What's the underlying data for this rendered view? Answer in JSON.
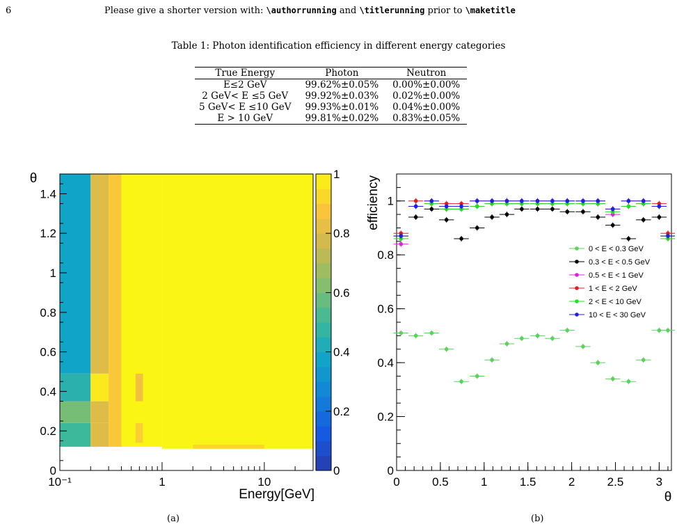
{
  "header": {
    "page_number": "6",
    "running_text": "Please give a shorter version with:",
    "cmd_author": "\\authorrunning",
    "and_word": "and",
    "cmd_title": "\\titlerunning",
    "prior_text": "prior to",
    "cmd_maketitle": "\\maketitle"
  },
  "table": {
    "caption": "Table 1: Photon identification efficiency in different energy categories",
    "headers": [
      "True Energy",
      "Photon",
      "Neutron"
    ],
    "rows": [
      [
        "E≤2 GeV",
        "99.62%±0.05%",
        "0.00%±0.00%"
      ],
      [
        "2 GeV< E ≤5 GeV",
        "99.92%±0.03%",
        "0.02%±0.00%"
      ],
      [
        "5 GeV< E ≤10 GeV",
        "99.93%±0.01%",
        "0.04%±0.00%"
      ],
      [
        "E > 10 GeV",
        "99.81%±0.02%",
        "0.83%±0.05%"
      ]
    ]
  },
  "captions": {
    "a": "(a)",
    "b": "(b)"
  },
  "chart_data": [
    {
      "type": "heatmap",
      "xlabel": "Energy[GeV]",
      "ylabel": "θ",
      "x_scale": "log",
      "xlim": [
        0.1,
        30
      ],
      "ylim": [
        0,
        1.5
      ],
      "x_tick_labels": [
        "10⁻¹",
        "1",
        "10"
      ],
      "y_tick_labels": [
        "0",
        "0.2",
        "0.4",
        "0.6",
        "0.8",
        "1",
        "1.2",
        "1.4"
      ],
      "colorbar_range": [
        0,
        1
      ],
      "colorbar_tick_labels": [
        "0",
        "0.2",
        "0.4",
        "0.6",
        "0.8",
        "1"
      ],
      "cells": [
        {
          "x": [
            0.1,
            0.2
          ],
          "y": [
            0.1,
            0.12
          ],
          "value": 0.0
        },
        {
          "x": [
            0.1,
            0.2
          ],
          "y": [
            0.12,
            0.24
          ],
          "value": 0.5
        },
        {
          "x": [
            0.1,
            0.2
          ],
          "y": [
            0.24,
            0.35
          ],
          "value": 0.6
        },
        {
          "x": [
            0.1,
            0.2
          ],
          "y": [
            0.35,
            0.49
          ],
          "value": 0.45
        },
        {
          "x": [
            0.1,
            0.2
          ],
          "y": [
            0.49,
            1.5
          ],
          "value": 0.38
        },
        {
          "x": [
            0.2,
            0.3
          ],
          "y": [
            0.12,
            0.24
          ],
          "value": 0.8
        },
        {
          "x": [
            0.2,
            0.3
          ],
          "y": [
            0.24,
            0.35
          ],
          "value": 0.8
        },
        {
          "x": [
            0.2,
            0.3
          ],
          "y": [
            0.35,
            0.49
          ],
          "value": 0.97
        },
        {
          "x": [
            0.2,
            0.3
          ],
          "y": [
            0.49,
            1.5
          ],
          "value": 0.8
        },
        {
          "x": [
            0.3,
            0.4
          ],
          "y": [
            0.12,
            1.5
          ],
          "value": 0.88
        },
        {
          "x": [
            0.4,
            1.0
          ],
          "y": [
            0.12,
            1.5
          ],
          "value": 1.0
        },
        {
          "x": [
            0.55,
            0.65
          ],
          "y": [
            0.14,
            0.24
          ],
          "value": 0.9
        },
        {
          "x": [
            0.55,
            0.65
          ],
          "y": [
            0.35,
            0.49
          ],
          "value": 0.85
        },
        {
          "x": [
            1.0,
            30
          ],
          "y": [
            0.11,
            1.5
          ],
          "value": 1.0
        },
        {
          "x": [
            2.0,
            10.0
          ],
          "y": [
            0.11,
            0.13
          ],
          "value": 0.92
        }
      ]
    },
    {
      "type": "scatter",
      "xlabel": "θ",
      "ylabel": "efficiency",
      "xlim": [
        0,
        3.14
      ],
      "ylim": [
        0,
        1.1
      ],
      "x_tick_labels": [
        "0",
        "0.5",
        "1",
        "1.5",
        "2",
        "2.5",
        "3"
      ],
      "y_tick_labels": [
        "0",
        "0.2",
        "0.4",
        "0.6",
        "0.8",
        "1"
      ],
      "x": [
        0.05,
        0.22,
        0.4,
        0.57,
        0.74,
        0.92,
        1.09,
        1.26,
        1.43,
        1.61,
        1.78,
        1.95,
        2.13,
        2.3,
        2.47,
        2.65,
        2.82,
        3.0,
        3.1
      ],
      "legend_position": "right-middle",
      "series": [
        {
          "name": "0 < E < 0.3 GeV",
          "color": "#5fcf5f",
          "values": [
            0.51,
            0.5,
            0.51,
            0.45,
            0.33,
            0.35,
            0.41,
            0.47,
            0.49,
            0.5,
            0.49,
            0.52,
            0.46,
            0.4,
            0.34,
            0.33,
            0.41,
            0.52,
            0.52
          ]
        },
        {
          "name": "0.3 < E < 0.5 GeV",
          "color": "#000000",
          "values": [
            0.87,
            0.94,
            0.97,
            0.93,
            0.86,
            0.9,
            0.94,
            0.95,
            0.97,
            0.97,
            0.97,
            0.96,
            0.96,
            0.94,
            0.91,
            0.86,
            0.93,
            0.94,
            0.87
          ]
        },
        {
          "name": "0.5 < E < 1 GeV",
          "color": "#e020e0",
          "values": [
            0.84,
            0.98,
            0.99,
            0.97,
            0.97,
            0.98,
            0.99,
            0.99,
            0.99,
            0.99,
            0.99,
            0.99,
            0.99,
            0.99,
            0.95,
            0.98,
            0.99,
            0.98,
            0.86
          ]
        },
        {
          "name": "1 < E < 2 GeV",
          "color": "#e02020",
          "values": [
            0.88,
            1.0,
            1.0,
            0.99,
            0.99,
            1.0,
            1.0,
            1.0,
            1.0,
            1.0,
            1.0,
            1.0,
            1.0,
            1.0,
            0.97,
            1.0,
            1.0,
            0.99,
            0.88
          ]
        },
        {
          "name": "2 < E < 10 GeV",
          "color": "#20e020",
          "values": [
            0.86,
            0.98,
            0.99,
            0.97,
            0.97,
            0.98,
            0.99,
            0.99,
            0.99,
            0.99,
            0.99,
            0.99,
            0.99,
            0.99,
            0.96,
            0.98,
            0.99,
            0.98,
            0.86
          ]
        },
        {
          "name": "10 < E < 30 GeV",
          "color": "#2020e0",
          "values": [
            0.87,
            0.98,
            1.0,
            0.98,
            0.98,
            1.0,
            1.0,
            1.0,
            1.0,
            1.0,
            1.0,
            1.0,
            1.0,
            1.0,
            0.97,
            1.0,
            1.0,
            0.98,
            0.87
          ]
        }
      ]
    }
  ]
}
